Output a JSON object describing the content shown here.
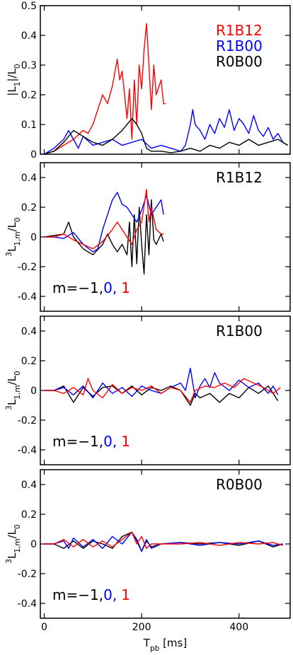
{
  "chart_data": [
    {
      "type": "line",
      "ylabel": [
        {
          "text": "|L"
        },
        {
          "text": "1",
          "shift": "sub"
        },
        {
          "text": "|/L"
        },
        {
          "text": "0",
          "shift": "sub"
        }
      ],
      "xlim": [
        -8,
        505
      ],
      "xticks": [
        0,
        200,
        400
      ],
      "show_xtick_labels": false,
      "ylim": [
        0,
        0.5
      ],
      "yticks": [
        0,
        0.1,
        0.2,
        0.3,
        0.4,
        0.5
      ],
      "legend": "upper right",
      "series": [
        {
          "name": "R1B12",
          "color": "#ff0000",
          "x": [
            0,
            20,
            40,
            60,
            80,
            90,
            100,
            110,
            120,
            130,
            140,
            150,
            155,
            160,
            170,
            175,
            180,
            185,
            190,
            195,
            200,
            205,
            210,
            215,
            220,
            225,
            230,
            240,
            245,
            250
          ],
          "values": [
            0,
            0.01,
            0.03,
            0.05,
            0.08,
            0.07,
            0.1,
            0.15,
            0.2,
            0.17,
            0.23,
            0.32,
            0.25,
            0.28,
            0.12,
            0.22,
            0.05,
            0.25,
            0.1,
            0.3,
            0.22,
            0.35,
            0.44,
            0.3,
            0.15,
            0.3,
            0.2,
            0.25,
            0.17,
            0.17
          ]
        },
        {
          "name": "R1B00",
          "color": "#0000ff",
          "x": [
            0,
            20,
            40,
            50,
            60,
            70,
            80,
            100,
            120,
            140,
            160,
            180,
            200,
            220,
            240,
            260,
            280,
            290,
            300,
            305,
            310,
            320,
            330,
            340,
            350,
            360,
            370,
            380,
            390,
            400,
            410,
            420,
            430,
            440,
            450,
            460,
            470,
            480,
            490,
            500
          ],
          "values": [
            0,
            0.02,
            0.05,
            0.08,
            0.05,
            0.02,
            0.06,
            0.03,
            0.04,
            0.05,
            0.03,
            0.04,
            0.05,
            0.02,
            0.03,
            0.02,
            0.01,
            0.03,
            0.1,
            0.15,
            0.1,
            0.08,
            0.05,
            0.1,
            0.07,
            0.12,
            0.09,
            0.15,
            0.08,
            0.12,
            0.1,
            0.07,
            0.13,
            0.08,
            0.06,
            0.09,
            0.05,
            0.07,
            0.04,
            0.03
          ]
        },
        {
          "name": "R0B00",
          "color": "#000000",
          "x": [
            0,
            20,
            40,
            60,
            80,
            100,
            120,
            140,
            160,
            180,
            190,
            200,
            210,
            220,
            240,
            260,
            280,
            300,
            320,
            340,
            360,
            380,
            400,
            420,
            440,
            460,
            480,
            500
          ],
          "values": [
            0,
            0.01,
            0.04,
            0.08,
            0.06,
            0.04,
            0.03,
            0.05,
            0.08,
            0.12,
            0.1,
            0.07,
            0.02,
            0.01,
            0.01,
            0.005,
            0.01,
            0.02,
            0.01,
            0.03,
            0.02,
            0.04,
            0.03,
            0.05,
            0.03,
            0.04,
            0.05,
            0.03
          ]
        }
      ]
    },
    {
      "type": "line",
      "label": "R1B12",
      "ylabel": [
        {
          "text": "3",
          "shift": "super"
        },
        {
          "text": "L"
        },
        {
          "text": "1,m",
          "shift": "sub"
        },
        {
          "text": "/L"
        },
        {
          "text": "0",
          "shift": "sub"
        }
      ],
      "xlim": [
        -8,
        505
      ],
      "xticks": [
        0,
        200,
        400
      ],
      "show_xtick_labels": false,
      "ylim": [
        -0.5,
        0.5
      ],
      "yticks": [
        -0.4,
        -0.2,
        0,
        0.2,
        0.4
      ],
      "legend": "lower left",
      "series": [
        {
          "name": "m=−1,",
          "color": "#000000",
          "x": [
            0,
            20,
            40,
            50,
            60,
            80,
            100,
            120,
            130,
            140,
            150,
            160,
            170,
            175,
            180,
            185,
            190,
            195,
            200,
            205,
            210,
            215,
            220,
            225,
            230,
            240,
            245
          ],
          "values": [
            0,
            0.01,
            0.02,
            0.1,
            0,
            -0.08,
            -0.12,
            -0.05,
            0.02,
            -0.05,
            -0.1,
            -0.05,
            -0.12,
            0.1,
            -0.2,
            0.15,
            -0.18,
            0.2,
            -0.05,
            -0.25,
            0.15,
            -0.12,
            0.25,
            -0.02,
            -0.05,
            0.02,
            -0.03
          ]
        },
        {
          "name": "0,",
          "color": "#0000ff",
          "x": [
            0,
            20,
            40,
            60,
            80,
            100,
            110,
            120,
            130,
            140,
            150,
            160,
            170,
            180,
            190,
            200,
            210,
            220,
            230,
            240,
            245
          ],
          "values": [
            0,
            0,
            -0.01,
            0.03,
            -0.05,
            -0.1,
            -0.08,
            0.05,
            0.15,
            0.25,
            0.3,
            0.22,
            0.2,
            0.15,
            0.1,
            0.18,
            0.28,
            0.15,
            0.2,
            0.25,
            0.15
          ]
        },
        {
          "name": "1",
          "color": "#ff0000",
          "x": [
            0,
            20,
            40,
            60,
            80,
            100,
            120,
            140,
            150,
            160,
            170,
            180,
            190,
            200,
            210,
            215,
            220,
            230,
            240,
            245
          ],
          "values": [
            0,
            0,
            0.02,
            -0.02,
            -0.05,
            -0.08,
            -0.03,
            0.05,
            0.1,
            0.05,
            0,
            -0.05,
            0.05,
            0.1,
            0.32,
            0.1,
            0.2,
            0.05,
            0.02,
            0.02
          ]
        }
      ]
    },
    {
      "type": "line",
      "label": "R1B00",
      "ylabel": [
        {
          "text": "3",
          "shift": "super"
        },
        {
          "text": "L"
        },
        {
          "text": "1,m",
          "shift": "sub"
        },
        {
          "text": "/L"
        },
        {
          "text": "0",
          "shift": "sub"
        }
      ],
      "xlim": [
        -8,
        505
      ],
      "xticks": [
        0,
        200,
        400
      ],
      "show_xtick_labels": false,
      "ylim": [
        -0.5,
        0.5
      ],
      "yticks": [
        -0.4,
        -0.2,
        0,
        0.2,
        0.4
      ],
      "legend": "lower left",
      "series": [
        {
          "name": "m=−1,",
          "color": "#000000",
          "x": [
            0,
            20,
            40,
            60,
            80,
            100,
            120,
            140,
            160,
            180,
            200,
            220,
            240,
            260,
            280,
            300,
            310,
            320,
            340,
            360,
            380,
            400,
            420,
            440,
            460,
            480
          ],
          "values": [
            0,
            0,
            0.03,
            -0.08,
            0.02,
            -0.04,
            0.02,
            0.03,
            -0.02,
            0.03,
            -0.03,
            0.02,
            0,
            0.03,
            0,
            -0.1,
            -0.02,
            -0.05,
            -0.02,
            -0.08,
            -0.02,
            -0.05,
            0.02,
            -0.02,
            0.03,
            -0.07
          ]
        },
        {
          "name": "0,",
          "color": "#0000ff",
          "x": [
            0,
            20,
            40,
            60,
            80,
            100,
            120,
            140,
            160,
            180,
            200,
            220,
            240,
            260,
            280,
            290,
            300,
            310,
            320,
            330,
            340,
            350,
            360,
            380,
            400,
            420,
            440,
            460,
            470,
            480
          ],
          "values": [
            0,
            0,
            0.02,
            -0.03,
            0.03,
            -0.05,
            0.05,
            -0.02,
            0.02,
            -0.04,
            0.03,
            0,
            -0.02,
            0.02,
            0.05,
            0,
            0.15,
            -0.05,
            0.03,
            0.08,
            0.02,
            0.12,
            0.05,
            0,
            0.07,
            0.02,
            0.05,
            -0.02,
            0.03,
            -0.03
          ]
        },
        {
          "name": "1",
          "color": "#ff0000",
          "x": [
            0,
            20,
            40,
            60,
            80,
            90,
            100,
            120,
            140,
            160,
            180,
            200,
            220,
            240,
            260,
            280,
            300,
            310,
            330,
            350,
            370,
            390,
            410,
            430,
            450,
            470,
            485
          ],
          "values": [
            0,
            0,
            -0.02,
            0.02,
            -0.03,
            0.08,
            0,
            -0.05,
            0.04,
            -0.02,
            0.02,
            0,
            0.03,
            -0.02,
            0.02,
            0,
            -0.08,
            0,
            0.03,
            0.02,
            0.05,
            0.02,
            0.08,
            0.05,
            0.02,
            -0.02,
            0.02
          ]
        }
      ]
    },
    {
      "type": "line",
      "label": "R0B00",
      "ylabel": [
        {
          "text": "3",
          "shift": "super"
        },
        {
          "text": "L"
        },
        {
          "text": "1,m",
          "shift": "sub"
        },
        {
          "text": "/L"
        },
        {
          "text": "0",
          "shift": "sub"
        }
      ],
      "xlabel": [
        {
          "text": "T"
        },
        {
          "text": "pb",
          "shift": "sub"
        },
        {
          "text": " [ms]"
        }
      ],
      "xlim": [
        -8,
        505
      ],
      "xticks": [
        0,
        200,
        400
      ],
      "show_xtick_labels": true,
      "ylim": [
        -0.5,
        0.5
      ],
      "yticks": [
        -0.4,
        -0.2,
        0,
        0.2,
        0.4
      ],
      "legend": "lower left",
      "series": [
        {
          "name": "m=−1,",
          "color": "#000000",
          "x": [
            0,
            20,
            40,
            60,
            80,
            100,
            120,
            140,
            160,
            180,
            190,
            200,
            210,
            220,
            240,
            280,
            320,
            360,
            400,
            440,
            470,
            490
          ],
          "values": [
            0,
            0,
            -0.03,
            0.02,
            -0.03,
            0.02,
            0,
            -0.03,
            0.05,
            0.08,
            0.03,
            -0.05,
            0.02,
            -0.02,
            0,
            0.01,
            0,
            0.01,
            -0.01,
            0.02,
            -0.02,
            0
          ]
        },
        {
          "name": "0,",
          "color": "#0000ff",
          "x": [
            0,
            20,
            40,
            50,
            60,
            80,
            100,
            120,
            140,
            160,
            180,
            190,
            200,
            210,
            220,
            240,
            280,
            320,
            360,
            400,
            440,
            470,
            490
          ],
          "values": [
            0,
            0,
            0.02,
            -0.03,
            0.04,
            -0.02,
            0.03,
            -0.03,
            0.05,
            0,
            0.08,
            0.02,
            -0.05,
            0.03,
            -0.03,
            0,
            0.01,
            -0.01,
            0.01,
            0,
            0.02,
            -0.01,
            0
          ]
        },
        {
          "name": "1",
          "color": "#ff0000",
          "x": [
            0,
            20,
            40,
            60,
            80,
            100,
            120,
            140,
            160,
            180,
            190,
            200,
            210,
            220,
            240,
            280,
            320,
            360,
            400,
            440,
            470,
            490
          ],
          "values": [
            0,
            0,
            0.03,
            -0.02,
            0.03,
            -0.02,
            0.02,
            -0.02,
            0.03,
            0.08,
            0,
            0.05,
            -0.03,
            0,
            0,
            0,
            0.01,
            -0.01,
            0.01,
            0,
            0.01,
            -0.01
          ]
        }
      ]
    }
  ]
}
